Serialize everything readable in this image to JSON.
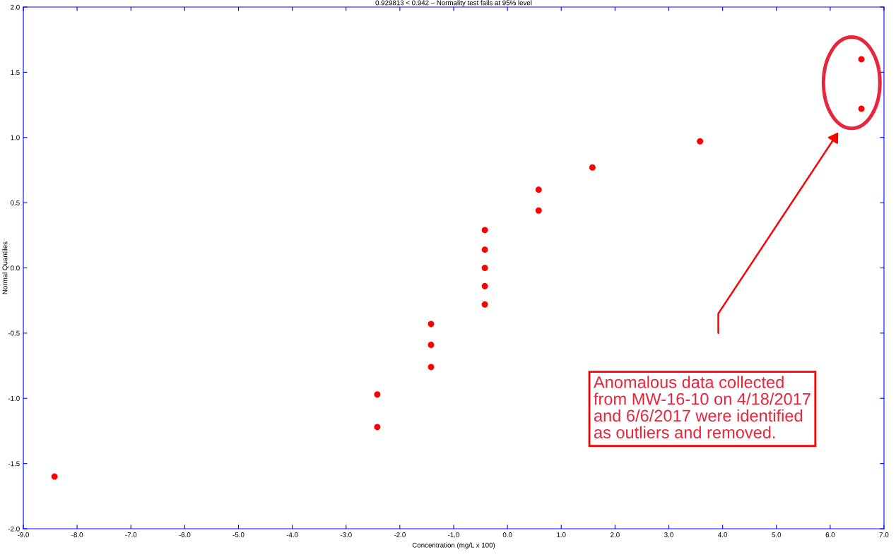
{
  "chart_data": {
    "type": "scatter",
    "title": "0.929813 < 0.942 – Normality test fails at 95% level",
    "xlabel": "Concentration (mg/L x 100)",
    "ylabel": "Normal Quantiles",
    "series": [
      {
        "color": "#ff0000",
        "x": [
          -8.42,
          -2.42,
          -2.42,
          -1.42,
          -1.42,
          -1.42,
          -0.42,
          -0.42,
          -0.42,
          -0.42,
          -0.42,
          0.58,
          0.58,
          1.58,
          3.58,
          6.58,
          6.58
        ],
        "values": [
          -1.6,
          -0.97,
          -1.22,
          -0.43,
          -0.59,
          -0.76,
          0.29,
          0.14,
          0.0,
          -0.14,
          -0.28,
          0.6,
          0.44,
          0.77,
          0.97,
          1.6,
          1.22
        ]
      }
    ],
    "xlim": [
      -9,
      7
    ],
    "ylim": [
      -2,
      2
    ],
    "xticks": [
      {
        "value": -9,
        "label": "-9.0"
      },
      {
        "value": -8,
        "label": "-8.0"
      },
      {
        "value": -7,
        "label": "-7.0"
      },
      {
        "value": -6,
        "label": "-6.0"
      },
      {
        "value": -5,
        "label": "-5.0"
      },
      {
        "value": -4,
        "label": "-4.0"
      },
      {
        "value": -3,
        "label": "-3.0"
      },
      {
        "value": -2,
        "label": "-2.0"
      },
      {
        "value": -1,
        "label": "-1.0"
      },
      {
        "value": 0,
        "label": "0.0"
      },
      {
        "value": 1,
        "label": "1.0"
      },
      {
        "value": 2,
        "label": "2.0"
      },
      {
        "value": 3,
        "label": "3.0"
      },
      {
        "value": 4,
        "label": "4.0"
      },
      {
        "value": 5,
        "label": "5.0"
      },
      {
        "value": 6,
        "label": "6.0"
      },
      {
        "value": 7,
        "label": "7.0"
      }
    ],
    "yticks": [
      {
        "value": -2,
        "label": "-2.0"
      },
      {
        "value": -1.5,
        "label": "-1.5"
      },
      {
        "value": -1,
        "label": "-1.0"
      },
      {
        "value": -0.5,
        "label": "-0.5"
      },
      {
        "value": 0,
        "label": "0.0"
      },
      {
        "value": 0.5,
        "label": "0.5"
      },
      {
        "value": 1,
        "label": "1.0"
      },
      {
        "value": 1.5,
        "label": "1.5"
      },
      {
        "value": 2,
        "label": "2.0"
      }
    ],
    "annotations": [
      "Anomalous data collected\nfrom MW-16-10 on 4/18/2017\nand 6/6/2017 were identified\nas outliers and removed."
    ],
    "grid": false,
    "legend": false,
    "marker": "circle"
  }
}
